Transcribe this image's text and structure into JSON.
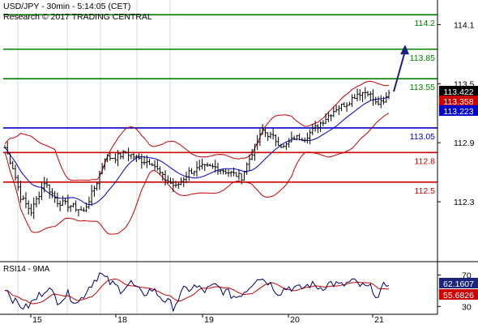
{
  "header": {
    "title": "USD/JPY - 30min - 5:14:05 (CET)",
    "subtitle": "Research © 2017 TRADING CENTRAL"
  },
  "colors": {
    "resistance": "#008000",
    "pivot": "#0000cc",
    "support": "#cc0000",
    "candles": "#000000",
    "bollinger": "#cc0000",
    "moving_average": "#0000cc",
    "arrow": "#1a237e",
    "rsi_line": "#000066",
    "rsi_ma": "#cc0000",
    "badge_price": "#000000",
    "badge_red": "#cc0000",
    "badge_blue": "#0000cc",
    "badge_rsi_blue": "#1a237e",
    "badge_rsi_red": "#cc0000"
  },
  "chart_data": {
    "type": "candlestick",
    "y_axis": {
      "ticks": [
        "114.1",
        "113.5",
        "112.9",
        "112.3"
      ],
      "ylim": [
        111.7,
        114.35
      ]
    },
    "x_axis": {
      "ticks": [
        "15",
        "18",
        "19",
        "20",
        "21"
      ]
    },
    "levels": [
      {
        "value": 114.2,
        "label": "114.2",
        "kind": "resistance"
      },
      {
        "value": 113.85,
        "label": "113.85",
        "kind": "resistance"
      },
      {
        "value": 113.55,
        "label": "113.55",
        "kind": "resistance"
      },
      {
        "value": 113.05,
        "label": "113.05",
        "kind": "pivot"
      },
      {
        "value": 112.8,
        "label": "112.8",
        "kind": "support"
      },
      {
        "value": 112.5,
        "label": "112.5",
        "kind": "support"
      }
    ],
    "price_badges": [
      {
        "value": 113.422,
        "label": "113.422",
        "kind": "price"
      },
      {
        "value": 113.358,
        "label": "113.358",
        "kind": "red"
      },
      {
        "value": 113.223,
        "label": "113.223",
        "kind": "blue"
      }
    ],
    "anchors": [
      {
        "i": 0,
        "p": 112.85
      },
      {
        "i": 3,
        "p": 112.65
      },
      {
        "i": 6,
        "p": 112.35
      },
      {
        "i": 10,
        "p": 112.2
      },
      {
        "i": 15,
        "p": 112.5
      },
      {
        "i": 20,
        "p": 112.3
      },
      {
        "i": 26,
        "p": 112.25
      },
      {
        "i": 30,
        "p": 112.2
      },
      {
        "i": 35,
        "p": 112.5
      },
      {
        "i": 38,
        "p": 112.75
      },
      {
        "i": 42,
        "p": 112.75
      },
      {
        "i": 46,
        "p": 112.8
      },
      {
        "i": 52,
        "p": 112.72
      },
      {
        "i": 56,
        "p": 112.7
      },
      {
        "i": 60,
        "p": 112.55
      },
      {
        "i": 65,
        "p": 112.45
      },
      {
        "i": 70,
        "p": 112.6
      },
      {
        "i": 75,
        "p": 112.65
      },
      {
        "i": 80,
        "p": 112.65
      },
      {
        "i": 85,
        "p": 112.6
      },
      {
        "i": 90,
        "p": 112.55
      },
      {
        "i": 94,
        "p": 112.8
      },
      {
        "i": 98,
        "p": 113.02
      },
      {
        "i": 102,
        "p": 112.95
      },
      {
        "i": 106,
        "p": 112.85
      },
      {
        "i": 110,
        "p": 112.95
      },
      {
        "i": 114,
        "p": 112.95
      },
      {
        "i": 118,
        "p": 113.05
      },
      {
        "i": 122,
        "p": 113.15
      },
      {
        "i": 126,
        "p": 113.25
      },
      {
        "i": 130,
        "p": 113.3
      },
      {
        "i": 134,
        "p": 113.4
      },
      {
        "i": 138,
        "p": 113.42
      },
      {
        "i": 141,
        "p": 113.3
      },
      {
        "i": 144,
        "p": 113.3
      },
      {
        "i": 146,
        "p": 113.42
      }
    ],
    "forecast": {
      "from_index": 146,
      "from_value": 113.42,
      "to_value": 113.88
    },
    "rsi": {
      "title": "RSI14 - 9MA",
      "ticks": [
        "70",
        "30"
      ],
      "ylim": [
        20,
        85
      ],
      "badges": [
        {
          "value": 62.1607,
          "label": "62.1607",
          "kind": "rsi_blue"
        },
        {
          "value": 55.6826,
          "label": "55.6826",
          "kind": "rsi_red"
        }
      ],
      "anchors": [
        {
          "i": 0,
          "v": 55
        },
        {
          "i": 4,
          "v": 35
        },
        {
          "i": 8,
          "v": 28
        },
        {
          "i": 12,
          "v": 40
        },
        {
          "i": 16,
          "v": 55
        },
        {
          "i": 20,
          "v": 38
        },
        {
          "i": 24,
          "v": 45
        },
        {
          "i": 28,
          "v": 35
        },
        {
          "i": 32,
          "v": 55
        },
        {
          "i": 36,
          "v": 72
        },
        {
          "i": 40,
          "v": 60
        },
        {
          "i": 44,
          "v": 52
        },
        {
          "i": 48,
          "v": 60
        },
        {
          "i": 52,
          "v": 45
        },
        {
          "i": 56,
          "v": 52
        },
        {
          "i": 60,
          "v": 40
        },
        {
          "i": 64,
          "v": 30
        },
        {
          "i": 68,
          "v": 50
        },
        {
          "i": 72,
          "v": 55
        },
        {
          "i": 76,
          "v": 50
        },
        {
          "i": 80,
          "v": 56
        },
        {
          "i": 84,
          "v": 48
        },
        {
          "i": 88,
          "v": 42
        },
        {
          "i": 92,
          "v": 52
        },
        {
          "i": 96,
          "v": 68
        },
        {
          "i": 100,
          "v": 62
        },
        {
          "i": 104,
          "v": 48
        },
        {
          "i": 108,
          "v": 55
        },
        {
          "i": 112,
          "v": 52
        },
        {
          "i": 116,
          "v": 58
        },
        {
          "i": 120,
          "v": 54
        },
        {
          "i": 124,
          "v": 60
        },
        {
          "i": 128,
          "v": 56
        },
        {
          "i": 132,
          "v": 62
        },
        {
          "i": 136,
          "v": 55
        },
        {
          "i": 140,
          "v": 52
        },
        {
          "i": 142,
          "v": 40
        },
        {
          "i": 144,
          "v": 55
        },
        {
          "i": 146,
          "v": 62
        }
      ]
    }
  }
}
